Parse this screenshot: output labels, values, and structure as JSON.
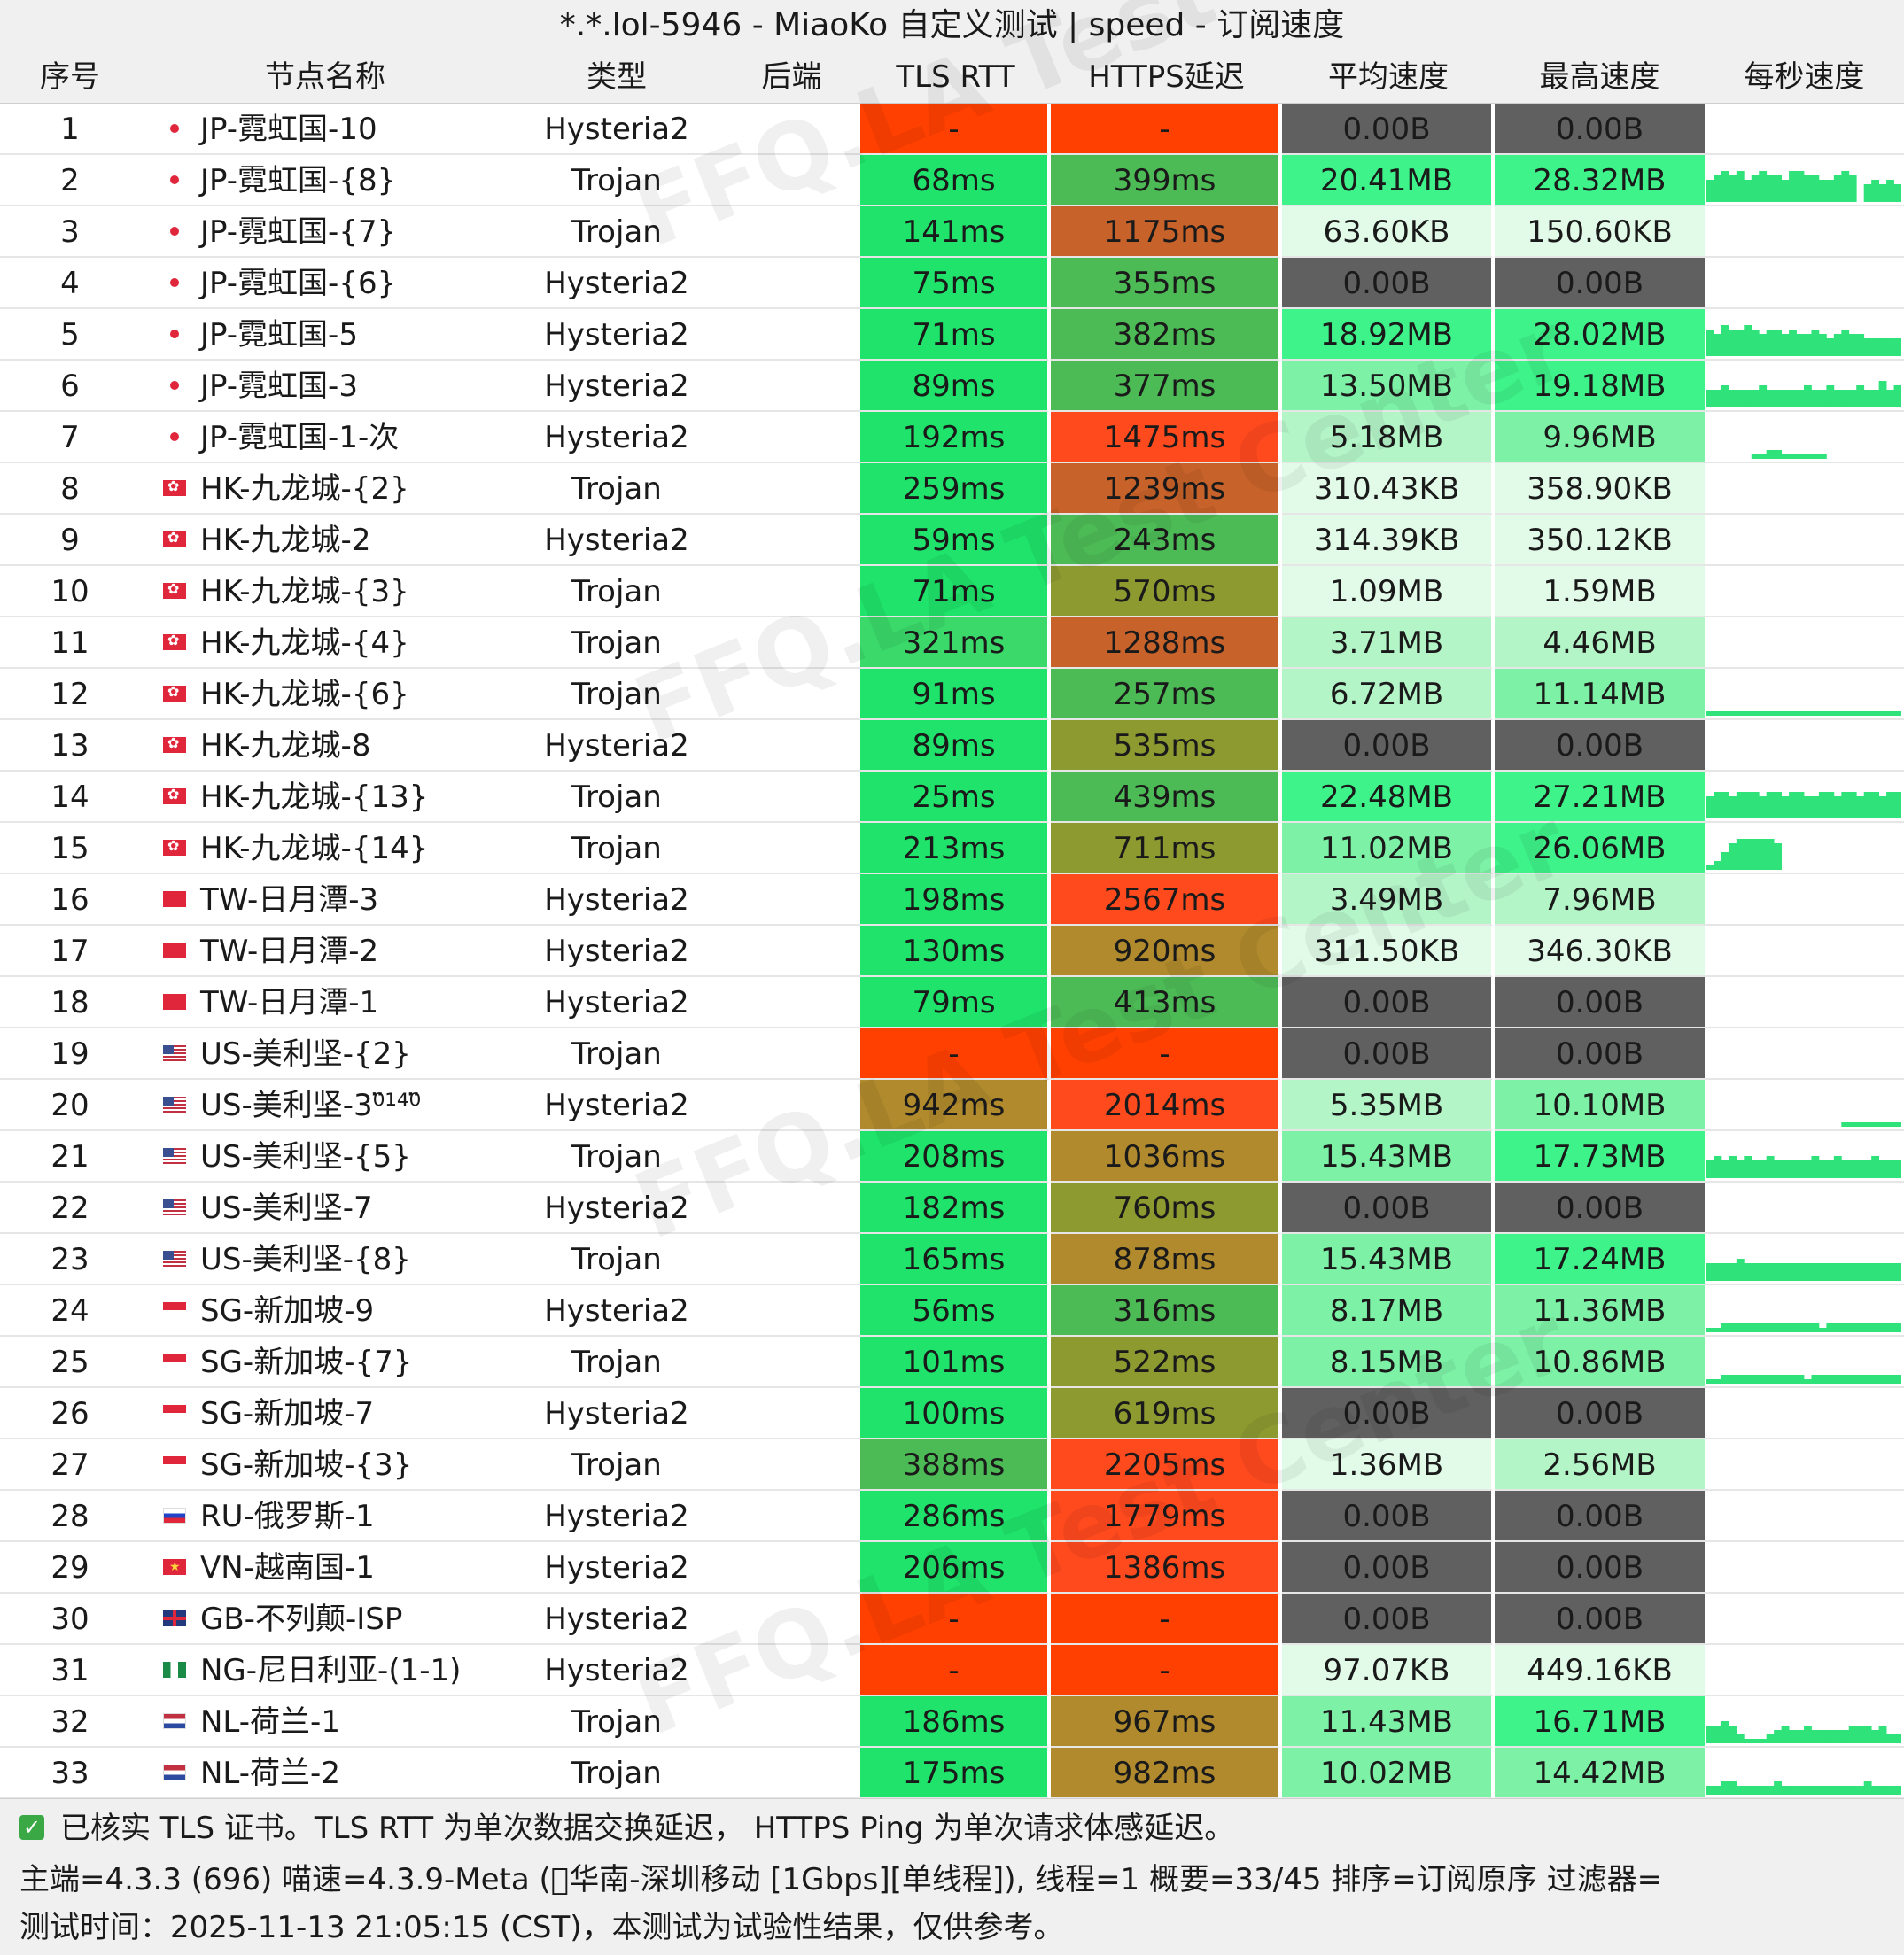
{
  "window": {
    "title": "*.*.lol-5946 - MiaoKo 自定义测试 | speed - 订阅速度"
  },
  "headers": [
    "序号",
    "节点名称",
    "类型",
    "后端",
    "TLS RTT",
    "HTTPS延迟",
    "平均速度",
    "最高速度",
    "每秒速度"
  ],
  "colors": {
    "fail": "#ff4000",
    "good": "#1fe36a",
    "fast": "#3ad96a",
    "mid": "#4dbb55",
    "olive": "#8c9a30",
    "amber": "#b08a2c",
    "orange": "#c7622a",
    "red": "#ff4a1e",
    "zero": "#606060",
    "spark": "#2fe37a",
    "tint1": "#e2fbe8",
    "tint2": "#b4f5c8",
    "tint3": "#7df2a6",
    "tint4": "#3ef38a"
  },
  "rows": [
    {
      "idx": "1",
      "flag": "jp",
      "name": "JP-霓虹国-10",
      "type": "Hysteria2",
      "tls": "-",
      "tlsc": "fail",
      "https": "-",
      "httpsc": "fail",
      "avg": "0.00B",
      "avgc": "zero",
      "max": "0.00B",
      "maxc": "zero",
      "spark": []
    },
    {
      "idx": "2",
      "flag": "jp",
      "name": "JP-霓虹国-{8}",
      "type": "Trojan",
      "tls": "68ms",
      "tlsc": "good",
      "https": "399ms",
      "httpsc": "mid",
      "avg": "20.41MB",
      "avgc": "tint4",
      "max": "28.32MB",
      "maxc": "tint4",
      "spark": [
        5,
        6,
        7,
        6,
        7,
        5,
        6,
        7,
        6,
        6,
        5,
        7,
        7,
        6,
        6,
        5,
        5,
        6,
        7,
        6,
        0,
        4,
        5,
        4,
        5,
        4
      ]
    },
    {
      "idx": "3",
      "flag": "jp",
      "name": "JP-霓虹国-{7}",
      "type": "Trojan",
      "tls": "141ms",
      "tlsc": "good",
      "https": "1175ms",
      "httpsc": "orange",
      "avg": "63.60KB",
      "avgc": "tint1",
      "max": "150.60KB",
      "maxc": "tint1",
      "spark": []
    },
    {
      "idx": "4",
      "flag": "jp",
      "name": "JP-霓虹国-{6}",
      "type": "Hysteria2",
      "tls": "75ms",
      "tlsc": "good",
      "https": "355ms",
      "httpsc": "mid",
      "avg": "0.00B",
      "avgc": "zero",
      "max": "0.00B",
      "maxc": "zero",
      "spark": []
    },
    {
      "idx": "5",
      "flag": "jp",
      "name": "JP-霓虹国-5",
      "type": "Hysteria2",
      "tls": "71ms",
      "tlsc": "good",
      "https": "382ms",
      "httpsc": "mid",
      "avg": "18.92MB",
      "avgc": "tint4",
      "max": "28.02MB",
      "maxc": "tint4",
      "spark": [
        6,
        5,
        7,
        6,
        6,
        7,
        6,
        5,
        6,
        6,
        5,
        6,
        5,
        5,
        6,
        5,
        4,
        5,
        6,
        5,
        5,
        4,
        4,
        4,
        4,
        4
      ]
    },
    {
      "idx": "6",
      "flag": "jp",
      "name": "JP-霓虹国-3",
      "type": "Hysteria2",
      "tls": "89ms",
      "tlsc": "good",
      "https": "377ms",
      "httpsc": "mid",
      "avg": "13.50MB",
      "avgc": "tint3",
      "max": "19.18MB",
      "maxc": "tint4",
      "spark": [
        4,
        4,
        5,
        4,
        4,
        4,
        4,
        5,
        4,
        4,
        4,
        4,
        4,
        5,
        4,
        4,
        5,
        4,
        4,
        4,
        5,
        4,
        4,
        6,
        4,
        5
      ]
    },
    {
      "idx": "7",
      "flag": "jp",
      "name": "JP-霓虹国-1-次",
      "type": "Hysteria2",
      "tls": "192ms",
      "tlsc": "good",
      "https": "1475ms",
      "httpsc": "red",
      "avg": "5.18MB",
      "avgc": "tint2",
      "max": "9.96MB",
      "maxc": "tint3",
      "spark": [
        0,
        0,
        0,
        0,
        0,
        0,
        1,
        1,
        2,
        2,
        1,
        1,
        1,
        1,
        1,
        1,
        0,
        0,
        0,
        0,
        0,
        0,
        0,
        0,
        0,
        0
      ]
    },
    {
      "idx": "8",
      "flag": "hk",
      "name": "HK-九龙城-{2}",
      "type": "Trojan",
      "tls": "259ms",
      "tlsc": "good",
      "https": "1239ms",
      "httpsc": "orange",
      "avg": "310.43KB",
      "avgc": "tint1",
      "max": "358.90KB",
      "maxc": "tint1",
      "spark": []
    },
    {
      "idx": "9",
      "flag": "hk",
      "name": "HK-九龙城-2",
      "type": "Hysteria2",
      "tls": "59ms",
      "tlsc": "good",
      "https": "243ms",
      "httpsc": "mid",
      "avg": "314.39KB",
      "avgc": "tint1",
      "max": "350.12KB",
      "maxc": "tint1",
      "spark": []
    },
    {
      "idx": "10",
      "flag": "hk",
      "name": "HK-九龙城-{3}",
      "type": "Trojan",
      "tls": "71ms",
      "tlsc": "good",
      "https": "570ms",
      "httpsc": "olive",
      "avg": "1.09MB",
      "avgc": "tint1",
      "max": "1.59MB",
      "maxc": "tint1",
      "spark": []
    },
    {
      "idx": "11",
      "flag": "hk",
      "name": "HK-九龙城-{4}",
      "type": "Trojan",
      "tls": "321ms",
      "tlsc": "fast",
      "https": "1288ms",
      "httpsc": "orange",
      "avg": "3.71MB",
      "avgc": "tint2",
      "max": "4.46MB",
      "maxc": "tint2",
      "spark": []
    },
    {
      "idx": "12",
      "flag": "hk",
      "name": "HK-九龙城-{6}",
      "type": "Trojan",
      "tls": "91ms",
      "tlsc": "good",
      "https": "257ms",
      "httpsc": "mid",
      "avg": "6.72MB",
      "avgc": "tint2",
      "max": "11.14MB",
      "maxc": "tint3",
      "spark": [
        1,
        1,
        1,
        1,
        1,
        1,
        1,
        1,
        1,
        1,
        1,
        1,
        1,
        1,
        1,
        1,
        1,
        1,
        1,
        1,
        1,
        1,
        1,
        1,
        1,
        1
      ]
    },
    {
      "idx": "13",
      "flag": "hk",
      "name": "HK-九龙城-8",
      "type": "Hysteria2",
      "tls": "89ms",
      "tlsc": "good",
      "https": "535ms",
      "httpsc": "olive",
      "avg": "0.00B",
      "avgc": "zero",
      "max": "0.00B",
      "maxc": "zero",
      "spark": []
    },
    {
      "idx": "14",
      "flag": "hk",
      "name": "HK-九龙城-{13}",
      "type": "Trojan",
      "tls": "25ms",
      "tlsc": "good",
      "https": "439ms",
      "httpsc": "mid",
      "avg": "22.48MB",
      "avgc": "tint4",
      "max": "27.21MB",
      "maxc": "tint4",
      "spark": [
        5,
        6,
        6,
        5,
        6,
        6,
        6,
        5,
        6,
        6,
        5,
        6,
        6,
        5,
        5,
        6,
        6,
        5,
        6,
        6,
        5,
        6,
        6,
        5,
        6,
        6
      ]
    },
    {
      "idx": "15",
      "flag": "hk",
      "name": "HK-九龙城-{14}",
      "type": "Trojan",
      "tls": "213ms",
      "tlsc": "good",
      "https": "711ms",
      "httpsc": "olive",
      "avg": "11.02MB",
      "avgc": "tint3",
      "max": "26.06MB",
      "maxc": "tint4",
      "spark": [
        1,
        2,
        4,
        6,
        7,
        7,
        7,
        7,
        7,
        6,
        0,
        0,
        0,
        0,
        0,
        0,
        0,
        0,
        0,
        0,
        0,
        0,
        0,
        0,
        0,
        0
      ]
    },
    {
      "idx": "16",
      "flag": "tw",
      "name": "TW-日月潭-3",
      "type": "Hysteria2",
      "tls": "198ms",
      "tlsc": "good",
      "https": "2567ms",
      "httpsc": "red",
      "avg": "3.49MB",
      "avgc": "tint2",
      "max": "7.96MB",
      "maxc": "tint2",
      "spark": []
    },
    {
      "idx": "17",
      "flag": "tw",
      "name": "TW-日月潭-2",
      "type": "Hysteria2",
      "tls": "130ms",
      "tlsc": "good",
      "https": "920ms",
      "httpsc": "amber",
      "avg": "311.50KB",
      "avgc": "tint1",
      "max": "346.30KB",
      "maxc": "tint1",
      "spark": []
    },
    {
      "idx": "18",
      "flag": "tw",
      "name": "TW-日月潭-1",
      "type": "Hysteria2",
      "tls": "79ms",
      "tlsc": "good",
      "https": "413ms",
      "httpsc": "mid",
      "avg": "0.00B",
      "avgc": "zero",
      "max": "0.00B",
      "maxc": "zero",
      "spark": []
    },
    {
      "idx": "19",
      "flag": "us",
      "name": "US-美利坚-{2}",
      "type": "Trojan",
      "tls": "-",
      "tlsc": "fail",
      "https": "-",
      "httpsc": "fail",
      "avg": "0.00B",
      "avgc": "zero",
      "max": "0.00B",
      "maxc": "zero",
      "spark": []
    },
    {
      "idx": "20",
      "flag": "us",
      "name": "US-美利坚-3⁰̈¹⁴⁰̈",
      "type": "Hysteria2",
      "tls": "942ms",
      "tlsc": "amber",
      "https": "2014ms",
      "httpsc": "red",
      "avg": "5.35MB",
      "avgc": "tint2",
      "max": "10.10MB",
      "maxc": "tint3",
      "spark": [
        0,
        0,
        0,
        0,
        0,
        0,
        0,
        0,
        0,
        0,
        0,
        0,
        0,
        0,
        0,
        0,
        0,
        0,
        1,
        1,
        1,
        1,
        1,
        1,
        1,
        1
      ]
    },
    {
      "idx": "21",
      "flag": "us",
      "name": "US-美利坚-{5}",
      "type": "Trojan",
      "tls": "208ms",
      "tlsc": "good",
      "https": "1036ms",
      "httpsc": "amber",
      "avg": "15.43MB",
      "avgc": "tint3",
      "max": "17.73MB",
      "maxc": "tint4",
      "spark": [
        4,
        5,
        4,
        5,
        4,
        5,
        4,
        4,
        5,
        4,
        4,
        4,
        4,
        4,
        5,
        4,
        4,
        5,
        4,
        4,
        4,
        4,
        5,
        4,
        4,
        4
      ]
    },
    {
      "idx": "22",
      "flag": "us",
      "name": "US-美利坚-7",
      "type": "Hysteria2",
      "tls": "182ms",
      "tlsc": "good",
      "https": "760ms",
      "httpsc": "olive",
      "avg": "0.00B",
      "avgc": "zero",
      "max": "0.00B",
      "maxc": "zero",
      "spark": []
    },
    {
      "idx": "23",
      "flag": "us",
      "name": "US-美利坚-{8}",
      "type": "Trojan",
      "tls": "165ms",
      "tlsc": "good",
      "https": "878ms",
      "httpsc": "amber",
      "avg": "15.43MB",
      "avgc": "tint3",
      "max": "17.24MB",
      "maxc": "tint4",
      "spark": [
        4,
        4,
        4,
        4,
        5,
        4,
        4,
        4,
        4,
        4,
        4,
        4,
        4,
        4,
        4,
        4,
        4,
        4,
        4,
        4,
        4,
        4,
        4,
        4,
        4,
        4
      ]
    },
    {
      "idx": "24",
      "flag": "sg",
      "name": "SG-新加坡-9",
      "type": "Hysteria2",
      "tls": "56ms",
      "tlsc": "good",
      "https": "316ms",
      "httpsc": "mid",
      "avg": "8.17MB",
      "avgc": "tint3",
      "max": "11.36MB",
      "maxc": "tint3",
      "spark": [
        1,
        1,
        2,
        2,
        2,
        2,
        2,
        2,
        2,
        2,
        2,
        2,
        2,
        2,
        2,
        1,
        2,
        2,
        2,
        2,
        2,
        2,
        2,
        2,
        2,
        2
      ]
    },
    {
      "idx": "25",
      "flag": "sg",
      "name": "SG-新加坡-{7}",
      "type": "Trojan",
      "tls": "101ms",
      "tlsc": "good",
      "https": "522ms",
      "httpsc": "olive",
      "avg": "8.15MB",
      "avgc": "tint3",
      "max": "10.86MB",
      "maxc": "tint3",
      "spark": [
        1,
        1,
        2,
        2,
        2,
        2,
        2,
        2,
        2,
        2,
        2,
        2,
        2,
        1,
        2,
        2,
        2,
        2,
        2,
        2,
        2,
        2,
        2,
        2,
        2,
        2
      ]
    },
    {
      "idx": "26",
      "flag": "sg",
      "name": "SG-新加坡-7",
      "type": "Hysteria2",
      "tls": "100ms",
      "tlsc": "good",
      "https": "619ms",
      "httpsc": "olive",
      "avg": "0.00B",
      "avgc": "zero",
      "max": "0.00B",
      "maxc": "zero",
      "spark": []
    },
    {
      "idx": "27",
      "flag": "sg",
      "name": "SG-新加坡-{3}",
      "type": "Trojan",
      "tls": "388ms",
      "tlsc": "mid",
      "https": "2205ms",
      "httpsc": "red",
      "avg": "1.36MB",
      "avgc": "tint1",
      "max": "2.56MB",
      "maxc": "tint2",
      "spark": []
    },
    {
      "idx": "28",
      "flag": "ru",
      "name": "RU-俄罗斯-1",
      "type": "Hysteria2",
      "tls": "286ms",
      "tlsc": "good",
      "https": "1779ms",
      "httpsc": "red",
      "avg": "0.00B",
      "avgc": "zero",
      "max": "0.00B",
      "maxc": "zero",
      "spark": []
    },
    {
      "idx": "29",
      "flag": "vn",
      "name": "VN-越南国-1",
      "type": "Hysteria2",
      "tls": "206ms",
      "tlsc": "good",
      "https": "1386ms",
      "httpsc": "red",
      "avg": "0.00B",
      "avgc": "zero",
      "max": "0.00B",
      "maxc": "zero",
      "spark": []
    },
    {
      "idx": "30",
      "flag": "gb",
      "name": "GB-不列颠-ISP",
      "type": "Hysteria2",
      "tls": "-",
      "tlsc": "fail",
      "https": "-",
      "httpsc": "fail",
      "avg": "0.00B",
      "avgc": "zero",
      "max": "0.00B",
      "maxc": "zero",
      "spark": []
    },
    {
      "idx": "31",
      "flag": "ng",
      "name": "NG-尼日利亚-(1-1)",
      "type": "Hysteria2",
      "tls": "-",
      "tlsc": "fail",
      "https": "-",
      "httpsc": "fail",
      "avg": "97.07KB",
      "avgc": "tint1",
      "max": "449.16KB",
      "maxc": "tint1",
      "spark": []
    },
    {
      "idx": "32",
      "flag": "nl",
      "name": "NL-荷兰-1",
      "type": "Trojan",
      "tls": "186ms",
      "tlsc": "good",
      "https": "967ms",
      "httpsc": "amber",
      "avg": "11.43MB",
      "avgc": "tint3",
      "max": "16.71MB",
      "maxc": "tint4",
      "spark": [
        4,
        4,
        5,
        4,
        2,
        1,
        1,
        1,
        2,
        3,
        4,
        3,
        3,
        4,
        3,
        3,
        3,
        3,
        3,
        4,
        4,
        4,
        3,
        4,
        2,
        2
      ]
    },
    {
      "idx": "33",
      "flag": "nl",
      "name": "NL-荷兰-2",
      "type": "Trojan",
      "tls": "175ms",
      "tlsc": "good",
      "https": "982ms",
      "httpsc": "amber",
      "avg": "10.02MB",
      "avgc": "tint3",
      "max": "14.42MB",
      "maxc": "tint3",
      "spark": [
        2,
        2,
        3,
        3,
        2,
        2,
        2,
        2,
        2,
        3,
        2,
        2,
        2,
        2,
        2,
        2,
        2,
        2,
        2,
        2,
        2,
        3,
        2,
        2,
        2,
        2
      ]
    }
  ],
  "footer": {
    "line1": "已核实 TLS 证书。TLS RTT 为单次数据交换延迟， HTTPS Ping 为单次请求体感延迟。",
    "line2": "主端=4.3.3 (696) 喵速=4.3.9-Meta (⃞华南-深圳移动 [1Gbps][单线程]), 线程=1 概要=33/45 排序=订阅原序 过滤器=",
    "line3": "测试时间：2025-11-13 21:05:15 (CST)，本测试为试验性结果，仅供参考。"
  },
  "watermark": "FFQ.LA Test Center"
}
